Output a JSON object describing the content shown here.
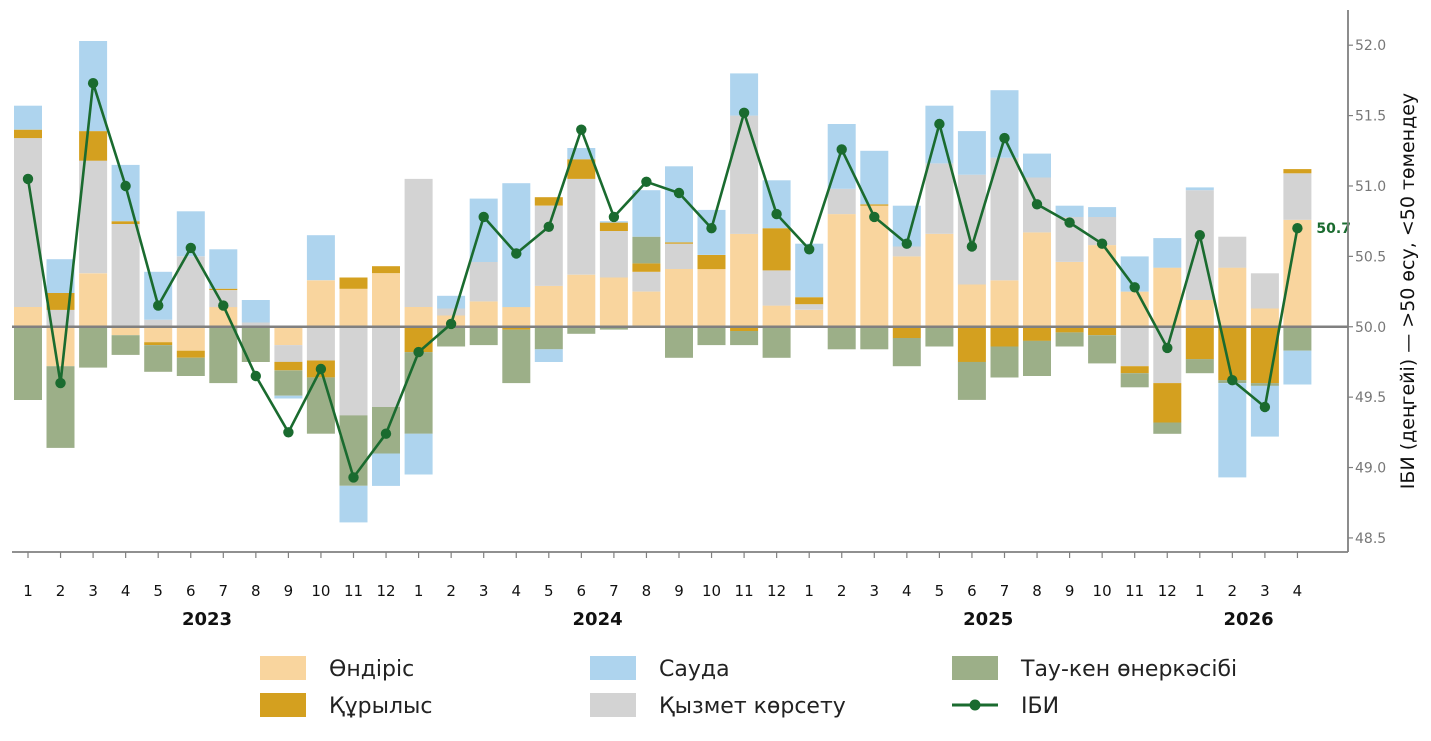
{
  "chart_data": {
    "type": "bar",
    "subtype": "stacked-bar-with-line",
    "x": [
      "1",
      "2",
      "3",
      "4",
      "5",
      "6",
      "7",
      "8",
      "9",
      "10",
      "11",
      "12",
      "1",
      "2",
      "3",
      "4",
      "5",
      "6",
      "7",
      "8",
      "9",
      "10",
      "11",
      "12",
      "1",
      "2",
      "3",
      "4",
      "5",
      "6",
      "7",
      "8",
      "9",
      "10",
      "11",
      "12",
      "1",
      "2",
      "3",
      "4"
    ],
    "years": [
      {
        "label": "2023",
        "first": 0,
        "last": 11
      },
      {
        "label": "2024",
        "first": 12,
        "last": 23
      },
      {
        "label": "2025",
        "first": 24,
        "last": 35
      },
      {
        "label": "2026",
        "first": 36,
        "last": 39
      }
    ],
    "ylabel": "ІБИ (деңгейі) — >50 өсу, <50 төмендеу",
    "ylim": [
      48.4,
      52.25
    ],
    "yticks": [
      48.5,
      49.0,
      49.5,
      50.0,
      50.5,
      51.0,
      51.5,
      52.0
    ],
    "baseline": 50.0,
    "stack_order": [
      "Өндіріс",
      "Қызмет көрсету",
      "Құрылыс",
      "Тау-кен өнеркәсібі",
      "Сауда"
    ],
    "series": [
      {
        "name": "Өндіріс",
        "color": "#f9d59e",
        "values": [
          0.14,
          -0.28,
          0.38,
          -0.06,
          -0.11,
          -0.17,
          0.14,
          0.0,
          -0.13,
          0.33,
          0.27,
          0.38,
          0.14,
          0.08,
          0.18,
          0.14,
          0.29,
          0.37,
          0.35,
          0.25,
          0.41,
          0.41,
          0.66,
          0.15,
          0.12,
          0.8,
          0.86,
          0.5,
          0.66,
          0.3,
          0.33,
          0.67,
          0.46,
          0.58,
          0.25,
          0.42,
          0.19,
          0.42,
          0.13,
          0.76
        ]
      },
      {
        "name": "Қызмет көрсету",
        "color": "#d3d3d3",
        "values": [
          1.2,
          0.12,
          0.8,
          0.73,
          0.05,
          0.5,
          0.12,
          0.03,
          -0.12,
          -0.24,
          -0.63,
          -0.57,
          0.91,
          0.05,
          0.28,
          0.0,
          0.57,
          0.68,
          0.33,
          0.14,
          0.18,
          0.0,
          0.84,
          0.25,
          0.04,
          0.18,
          0.0,
          0.07,
          0.5,
          0.78,
          0.87,
          0.39,
          0.32,
          0.2,
          -0.28,
          -0.4,
          0.78,
          0.22,
          0.25,
          0.33
        ]
      },
      {
        "name": "Құрылыс",
        "color": "#d4a01f",
        "values": [
          0.06,
          0.12,
          0.21,
          0.02,
          -0.02,
          -0.05,
          0.01,
          0.0,
          -0.06,
          -0.12,
          0.08,
          0.05,
          -0.18,
          0.0,
          0.0,
          -0.02,
          0.06,
          0.14,
          0.06,
          0.06,
          0.01,
          0.1,
          -0.03,
          0.3,
          0.05,
          0.0,
          0.01,
          -0.08,
          0.0,
          -0.25,
          -0.14,
          -0.1,
          -0.04,
          -0.06,
          -0.05,
          -0.28,
          -0.23,
          -0.38,
          -0.4,
          0.03
        ]
      },
      {
        "name": "Тау-кен өнеркәсібі",
        "color": "#9caf88",
        "values": [
          -0.52,
          -0.58,
          -0.29,
          -0.14,
          -0.19,
          -0.13,
          -0.4,
          -0.25,
          -0.18,
          -0.4,
          -0.5,
          -0.33,
          -0.58,
          -0.14,
          -0.13,
          -0.38,
          -0.16,
          -0.05,
          -0.02,
          0.19,
          -0.22,
          -0.13,
          -0.1,
          -0.22,
          0.0,
          -0.16,
          -0.16,
          -0.2,
          -0.14,
          -0.27,
          -0.22,
          -0.25,
          -0.1,
          -0.2,
          -0.1,
          -0.08,
          -0.1,
          -0.02,
          -0.02,
          -0.17
        ]
      },
      {
        "name": "Сауда",
        "color": "#aed4ee",
        "values": [
          0.17,
          0.24,
          0.64,
          0.4,
          0.34,
          0.32,
          0.28,
          0.16,
          -0.02,
          0.32,
          -0.26,
          -0.23,
          -0.29,
          0.09,
          0.45,
          0.88,
          -0.09,
          0.08,
          0.01,
          0.33,
          0.54,
          0.32,
          0.3,
          0.34,
          0.38,
          0.46,
          0.38,
          0.29,
          0.41,
          0.31,
          0.48,
          0.17,
          0.08,
          0.07,
          0.25,
          0.21,
          0.02,
          -0.67,
          -0.36,
          -0.24
        ]
      }
    ],
    "line": {
      "name": "ІБИ",
      "color": "#1a6b2f",
      "values": [
        51.05,
        49.6,
        51.73,
        51.0,
        50.15,
        50.56,
        50.15,
        49.65,
        49.25,
        49.7,
        48.93,
        49.24,
        49.82,
        50.02,
        50.78,
        50.52,
        50.71,
        51.4,
        50.78,
        51.03,
        50.95,
        50.7,
        51.52,
        50.8,
        50.55,
        51.26,
        50.78,
        50.59,
        51.44,
        50.57,
        51.34,
        50.87,
        50.74,
        50.59,
        50.28,
        49.85,
        50.65,
        49.62,
        49.43,
        50.7
      ],
      "end_label": "50.7"
    },
    "legend": {
      "placement": "bottom",
      "entries": [
        {
          "label": "Өндіріс",
          "kind": "patch",
          "color": "#f9d59e"
        },
        {
          "label": "Құрылыс",
          "kind": "patch",
          "color": "#d4a01f"
        },
        {
          "label": "Сауда",
          "kind": "patch",
          "color": "#aed4ee"
        },
        {
          "label": "Қызмет көрсету",
          "kind": "patch",
          "color": "#d3d3d3"
        },
        {
          "label": "Тау-кен өнеркәсібі",
          "kind": "patch",
          "color": "#9caf88"
        },
        {
          "label": "ІБИ",
          "kind": "line",
          "color": "#1a6b2f"
        }
      ]
    },
    "grid": false,
    "yaxis_side": "right"
  }
}
